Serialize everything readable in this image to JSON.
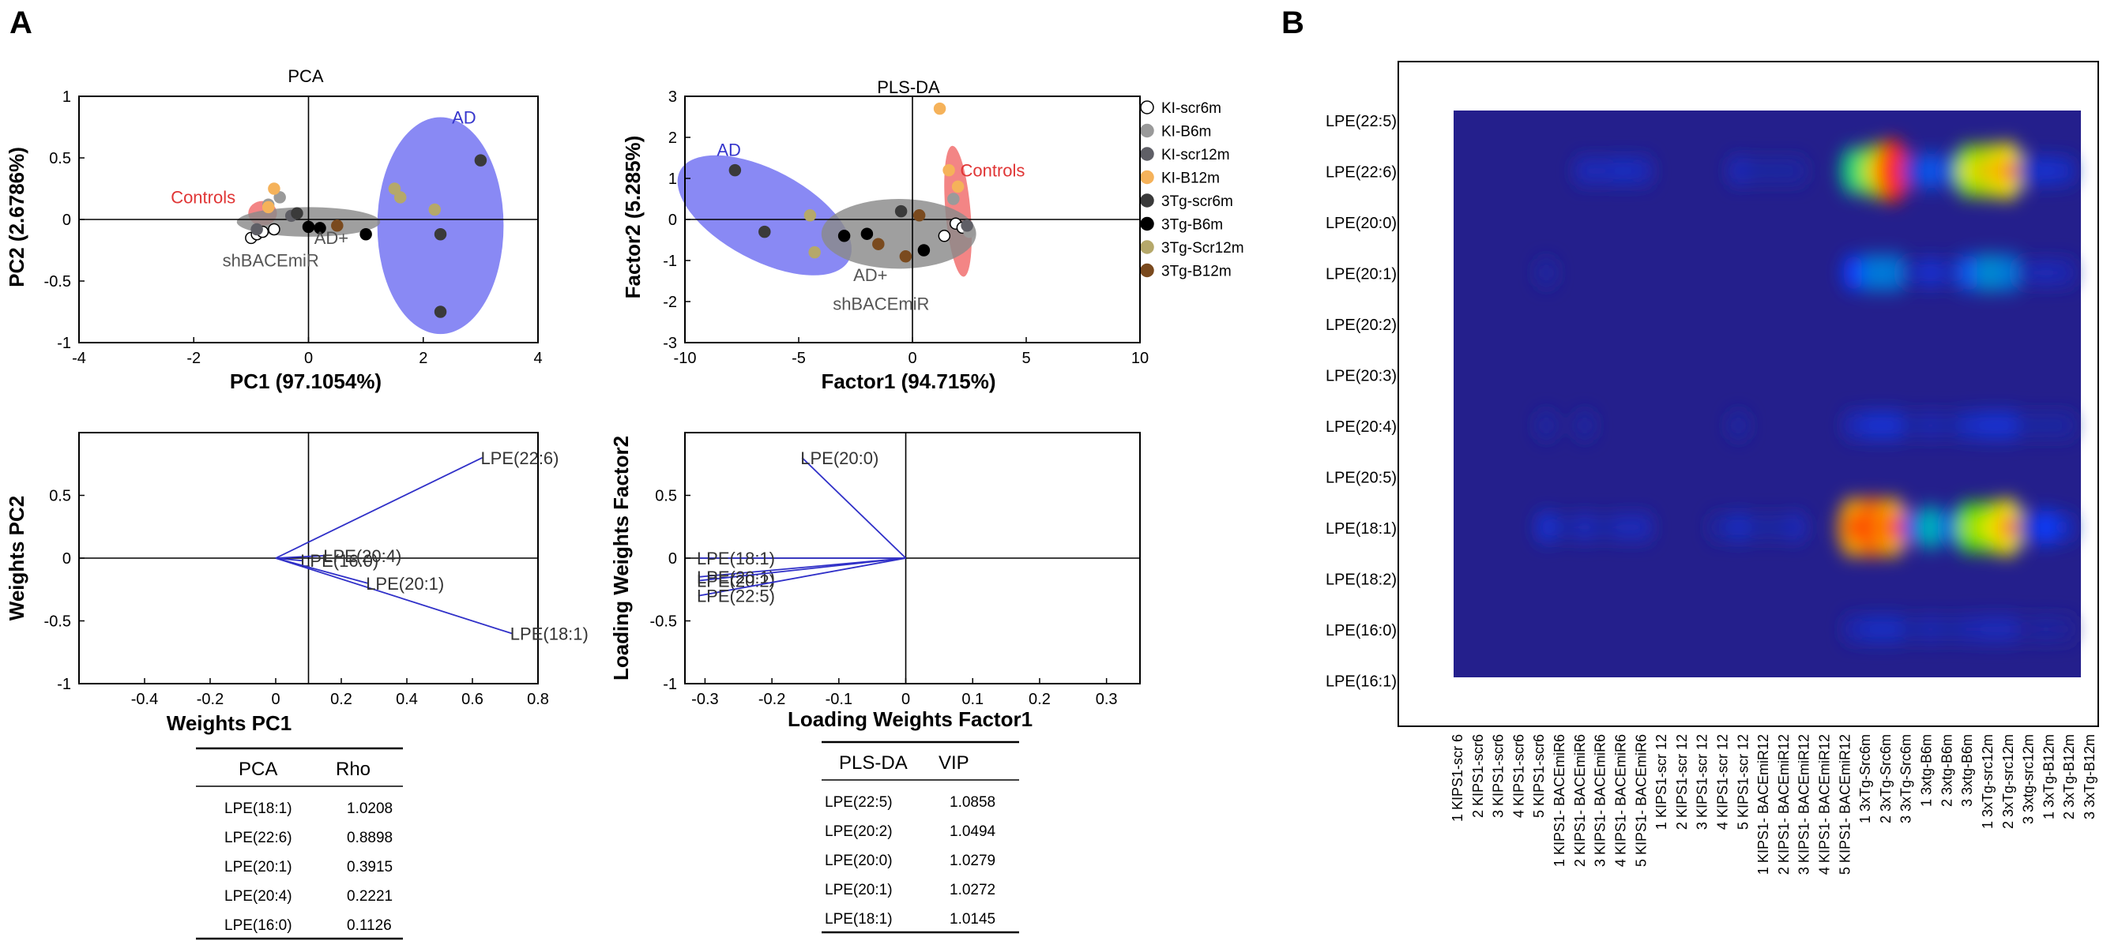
{
  "panels": {
    "a": "A",
    "b": "B"
  },
  "colors": {
    "blue_region": "#6f6ff2",
    "red_region": "#f06a6a",
    "gray_region": "#8a8a8a",
    "loading_line": "#3030c8",
    "heat_bg": "#241f8c"
  },
  "chart_data": [
    {
      "id": "pca",
      "type": "scatter",
      "title": "PCA",
      "xlabel": "PC1 (97.1054%)",
      "ylabel": "PC2 (2.6786%)",
      "xlim": [
        -4,
        4
      ],
      "ylim": [
        -1,
        1
      ],
      "xticks": [
        -4,
        -2,
        0,
        2,
        4
      ],
      "yticks": [
        -1,
        -0.5,
        0,
        0.5,
        1
      ],
      "xtick_labels": [
        "-4",
        "-2",
        "0",
        "2",
        "4"
      ],
      "ytick_labels": [
        "-1",
        "-0.5",
        "0",
        "0.5",
        "1"
      ],
      "region_labels": {
        "ad": "AD",
        "controls": "Controls",
        "treated_1": "AD+",
        "treated_2": "shBACEmiR"
      },
      "regions": [
        {
          "group": "AD",
          "cx": 2.3,
          "cy": -0.05,
          "rx": 1.1,
          "ry": 0.88,
          "rot": 0,
          "color": "#6f6ff2"
        },
        {
          "group": "Controls",
          "cx": -0.8,
          "cy": 0.05,
          "rx": 0.25,
          "ry": 0.1,
          "rot": 0,
          "color": "#f06a6a"
        },
        {
          "group": "AD+shBACEmiR",
          "cx": 0.0,
          "cy": -0.02,
          "rx": 1.25,
          "ry": 0.12,
          "rot": 0,
          "color": "#8a8a8a"
        }
      ],
      "points": [
        {
          "x": -1.0,
          "y": -0.15,
          "s": 0
        },
        {
          "x": -0.9,
          "y": -0.12,
          "s": 0
        },
        {
          "x": -0.8,
          "y": -0.1,
          "s": 0
        },
        {
          "x": -0.6,
          "y": -0.08,
          "s": 0
        },
        {
          "x": -0.7,
          "y": 0.12,
          "s": 1
        },
        {
          "x": -0.5,
          "y": 0.18,
          "s": 1
        },
        {
          "x": -0.9,
          "y": -0.08,
          "s": 2
        },
        {
          "x": -0.3,
          "y": 0.03,
          "s": 2
        },
        {
          "x": -0.6,
          "y": 0.25,
          "s": 3
        },
        {
          "x": -0.7,
          "y": 0.1,
          "s": 3
        },
        {
          "x": 3.0,
          "y": 0.48,
          "s": 4
        },
        {
          "x": 2.3,
          "y": -0.75,
          "s": 4
        },
        {
          "x": 2.3,
          "y": -0.12,
          "s": 4
        },
        {
          "x": -0.2,
          "y": 0.05,
          "s": 4
        },
        {
          "x": 0.0,
          "y": -0.06,
          "s": 5
        },
        {
          "x": 0.2,
          "y": -0.07,
          "s": 5
        },
        {
          "x": 1.0,
          "y": -0.12,
          "s": 5
        },
        {
          "x": 1.5,
          "y": 0.25,
          "s": 6
        },
        {
          "x": 2.2,
          "y": 0.08,
          "s": 6
        },
        {
          "x": 1.6,
          "y": 0.18,
          "s": 6
        },
        {
          "x": 0.5,
          "y": -0.05,
          "s": 7
        }
      ]
    },
    {
      "id": "plsda",
      "type": "scatter",
      "title": "PLS-DA",
      "xlabel": "Factor1 (94.715%)",
      "ylabel": "Factor2 (5.285%)",
      "xlim": [
        -10,
        10
      ],
      "ylim": [
        -3,
        3
      ],
      "xticks": [
        -10,
        -5,
        0,
        5,
        10
      ],
      "yticks": [
        -3,
        -2,
        -1,
        0,
        1,
        2,
        3
      ],
      "xtick_labels": [
        "-10",
        "-5",
        "0",
        "5",
        "10"
      ],
      "ytick_labels": [
        "-3",
        "-2",
        "-1",
        "0",
        "1",
        "2",
        "3"
      ],
      "region_labels": {
        "ad": "AD",
        "controls": "Controls",
        "treated_1": "AD+",
        "treated_2": "shBACEmiR"
      },
      "regions": [
        {
          "group": "AD",
          "cx": -6.5,
          "cy": 0.1,
          "rx": 4.2,
          "ry": 1.1,
          "rot": 28,
          "color": "#6f6ff2"
        },
        {
          "group": "Controls",
          "cx": 2.0,
          "cy": 0.2,
          "rx": 0.55,
          "ry": 1.6,
          "rot": -5,
          "color": "#f06a6a"
        },
        {
          "group": "AD+shBACEmiR",
          "cx": -0.6,
          "cy": -0.35,
          "rx": 3.4,
          "ry": 0.85,
          "rot": 0,
          "color": "#8a8a8a"
        }
      ],
      "points": [
        {
          "x": 1.9,
          "y": -0.1,
          "s": 0
        },
        {
          "x": 1.4,
          "y": -0.4,
          "s": 0
        },
        {
          "x": 2.2,
          "y": -0.2,
          "s": 0
        },
        {
          "x": 1.8,
          "y": 0.5,
          "s": 1
        },
        {
          "x": 2.5,
          "y": -0.3,
          "s": 1
        },
        {
          "x": 2.4,
          "y": -0.15,
          "s": 2
        },
        {
          "x": 1.2,
          "y": 2.7,
          "s": 3
        },
        {
          "x": 1.6,
          "y": 1.2,
          "s": 3
        },
        {
          "x": 2.0,
          "y": 0.8,
          "s": 3
        },
        {
          "x": -7.8,
          "y": 1.2,
          "s": 4
        },
        {
          "x": -6.5,
          "y": -0.3,
          "s": 4
        },
        {
          "x": -0.5,
          "y": 0.2,
          "s": 4
        },
        {
          "x": -3.0,
          "y": -0.4,
          "s": 5
        },
        {
          "x": 0.5,
          "y": -0.75,
          "s": 5
        },
        {
          "x": -2.0,
          "y": -0.35,
          "s": 5
        },
        {
          "x": -4.5,
          "y": 0.1,
          "s": 6
        },
        {
          "x": -4.3,
          "y": -0.8,
          "s": 6
        },
        {
          "x": -0.3,
          "y": -0.9,
          "s": 7
        },
        {
          "x": 0.3,
          "y": 0.1,
          "s": 7
        },
        {
          "x": -1.5,
          "y": -0.6,
          "s": 7
        }
      ],
      "legend": [
        {
          "label": "KI-scr6m",
          "color": "#ffffff",
          "stroke": "#000000"
        },
        {
          "label": "KI-B6m",
          "color": "#9a9a9a",
          "stroke": "#9a9a9a"
        },
        {
          "label": "KI-scr12m",
          "color": "#5f5f66",
          "stroke": "#5f5f66"
        },
        {
          "label": "KI-B12m",
          "color": "#f5b25a",
          "stroke": "#f5b25a"
        },
        {
          "label": "3Tg-scr6m",
          "color": "#3a3a3a",
          "stroke": "#3a3a3a"
        },
        {
          "label": "3Tg-B6m",
          "color": "#000000",
          "stroke": "#000000"
        },
        {
          "label": "3Tg-Scr12m",
          "color": "#b5a86a",
          "stroke": "#b5a86a"
        },
        {
          "label": "3Tg-B12m",
          "color": "#7a4a1e",
          "stroke": "#7a4a1e"
        }
      ]
    },
    {
      "id": "pca_weights",
      "type": "line",
      "xlabel": "Weights PC1",
      "ylabel": "Weights PC2",
      "xlim": [
        -0.6,
        0.8
      ],
      "ylim": [
        -1,
        1
      ],
      "xticks": [
        -0.4,
        -0.2,
        0,
        0.2,
        0.4,
        0.6,
        0.8
      ],
      "yticks": [
        -1,
        -0.5,
        0,
        0.5
      ],
      "xtick_labels": [
        "-0.4",
        "-0.2",
        "0",
        "0.2",
        "0.4",
        "0.6",
        "0.8"
      ],
      "ytick_labels": [
        "-1",
        "-0.5",
        "0",
        "0.5"
      ],
      "origin_x": 0,
      "vline_x": 0.1,
      "vectors": [
        {
          "label": "LPE(22:6)",
          "x": 0.63,
          "y": 0.8
        },
        {
          "label": "LPE(18:1)",
          "x": 0.72,
          "y": -0.6
        },
        {
          "label": "LPE(20:4)",
          "x": 0.15,
          "y": 0.02
        },
        {
          "label": "LPE(16:0)",
          "x": 0.08,
          "y": -0.02
        },
        {
          "label": "LPE(20:1)",
          "x": 0.28,
          "y": -0.2
        }
      ]
    },
    {
      "id": "plsda_weights",
      "type": "line",
      "xlabel": "Loading Weights Factor1",
      "ylabel": "Loading Weights Factor2",
      "xlim": [
        -0.33,
        0.35
      ],
      "ylim": [
        -1,
        1
      ],
      "xticks": [
        -0.3,
        -0.2,
        -0.1,
        0,
        0.1,
        0.2,
        0.3
      ],
      "yticks": [
        -1,
        -0.5,
        0,
        0.5
      ],
      "xtick_labels": [
        "-0.3",
        "-0.2",
        "-0.1",
        "0",
        "0.1",
        "0.2",
        "0.3"
      ],
      "ytick_labels": [
        "-1",
        "-0.5",
        "0",
        "0.5"
      ],
      "vectors": [
        {
          "label": "LPE(20:0)",
          "x": -0.155,
          "y": 0.8
        },
        {
          "label": "LPE(18:1)",
          "x": -0.31,
          "y": 0.0
        },
        {
          "label": "LPE(20:1)",
          "x": -0.31,
          "y": -0.15
        },
        {
          "label": "LPE(20:2)",
          "x": -0.31,
          "y": -0.18
        },
        {
          "label": "LPE(22:5)",
          "x": -0.31,
          "y": -0.3
        }
      ]
    },
    {
      "id": "heatmap",
      "type": "heatmap",
      "rows": [
        "LPE(22:5)",
        "LPE(22:6)",
        "LPE(20:0)",
        "LPE(20:1)",
        "LPE(20:2)",
        "LPE(20:3)",
        "LPE(20:4)",
        "LPE(20:5)",
        "LPE(18:1)",
        "LPE(18:2)",
        "LPE(16:0)",
        "LPE(16:1)"
      ],
      "columns": [
        "1 KIPS1-scr 6",
        "2 KIPS1-scr6",
        "3 KIPS1-scr6",
        "4 KIPS1-scr6",
        "5 KIPS1-scr6",
        "1 KIPS1- BACEmiR6",
        "2 KIPS1- BACEmiR6",
        "3 KIPS1- BACEmiR6",
        "4 KIPS1- BACEmiR6",
        "5 KIPS1- BACEmiR6",
        "1 KIPS1-scr 12",
        "2 KIPS1-scr 12",
        "3 KIPS1-scr 12",
        "4 KIPS1-scr 12",
        "5 KIPS1-scr 12",
        "1 KIPS1- BACEmiR12",
        "2 KIPS1- BACEmiR12",
        "3 KIPS1- BACEmiR12",
        "4 KIPS1- BACEmiR12",
        "5 KIPS1- BACEmiR12",
        "1 3xTg-Src6m",
        "2 3xTg-Src6m",
        "3 3xTg-Src6m",
        "1 3xtg-B6m",
        "2 3xtg-B6m",
        "3 3xtg-B6m",
        "1 3xTg-src12m",
        "2 3xTg-src12m",
        "3 3xtg-src12m",
        "1 3xTg-B12m",
        "2 3xTg-B12m",
        "3 3xTg-B12m"
      ],
      "values": [
        [
          0,
          0,
          0,
          0,
          0,
          0,
          0,
          0,
          0,
          0,
          0,
          0,
          0,
          0,
          0,
          0,
          0,
          0,
          0,
          0,
          0,
          0,
          0,
          0,
          0,
          0,
          0,
          0,
          0,
          0,
          0,
          0
        ],
        [
          0,
          0,
          0,
          0,
          0,
          0,
          0.1,
          0.1,
          0.12,
          0.1,
          0,
          0,
          0,
          0,
          0.1,
          0.05,
          0.05,
          0.05,
          0,
          0,
          0.55,
          0.75,
          1.0,
          0.15,
          0.3,
          0.15,
          0.75,
          0.8,
          0.85,
          0.12,
          0.15,
          0.12
        ],
        [
          0,
          0,
          0,
          0,
          0,
          0,
          0,
          0,
          0,
          0,
          0,
          0,
          0,
          0,
          0,
          0,
          0,
          0,
          0,
          0,
          0,
          0,
          0,
          0,
          0,
          0,
          0,
          0,
          0,
          0,
          0,
          0
        ],
        [
          0,
          0,
          0,
          0,
          0.05,
          0,
          0,
          0,
          0,
          0,
          0,
          0,
          0,
          0,
          0,
          0,
          0,
          0,
          0,
          0,
          0.25,
          0.35,
          0.35,
          0.08,
          0.15,
          0.08,
          0.3,
          0.38,
          0.35,
          0.08,
          0.1,
          0.08
        ],
        [
          0,
          0,
          0,
          0,
          0,
          0,
          0,
          0,
          0,
          0,
          0,
          0,
          0,
          0,
          0,
          0,
          0,
          0,
          0,
          0,
          0,
          0,
          0,
          0,
          0,
          0,
          0,
          0,
          0,
          0,
          0,
          0
        ],
        [
          0,
          0,
          0,
          0,
          0,
          0,
          0,
          0,
          0,
          0,
          0,
          0,
          0,
          0,
          0,
          0,
          0,
          0,
          0,
          0,
          0,
          0,
          0,
          0,
          0,
          0,
          0,
          0,
          0,
          0,
          0,
          0
        ],
        [
          0,
          0,
          0,
          0,
          0.05,
          0,
          0.05,
          0,
          0,
          0,
          0,
          0,
          0,
          0,
          0.05,
          0,
          0,
          0,
          0,
          0,
          0.1,
          0.15,
          0.15,
          0.05,
          0.08,
          0.05,
          0.12,
          0.15,
          0.15,
          0.05,
          0.05,
          0.05
        ],
        [
          0,
          0,
          0,
          0,
          0,
          0,
          0,
          0,
          0,
          0,
          0,
          0,
          0,
          0,
          0,
          0,
          0,
          0,
          0,
          0,
          0,
          0,
          0,
          0,
          0,
          0,
          0,
          0,
          0,
          0,
          0,
          0
        ],
        [
          0,
          0,
          0,
          0,
          0.15,
          0.05,
          0.1,
          0.05,
          0.1,
          0.1,
          0,
          0,
          0,
          0.05,
          0.12,
          0.05,
          0.05,
          0.1,
          0,
          0,
          0.9,
          0.95,
          0.9,
          0.2,
          0.45,
          0.2,
          0.7,
          0.75,
          0.85,
          0.12,
          0.25,
          0.12
        ],
        [
          0,
          0,
          0,
          0,
          0,
          0,
          0,
          0,
          0,
          0,
          0,
          0,
          0,
          0,
          0,
          0,
          0,
          0,
          0,
          0,
          0,
          0,
          0,
          0,
          0,
          0,
          0,
          0,
          0,
          0,
          0,
          0
        ],
        [
          0,
          0,
          0,
          0,
          0,
          0,
          0,
          0,
          0,
          0,
          0,
          0,
          0,
          0,
          0,
          0,
          0,
          0,
          0,
          0,
          0.08,
          0.12,
          0.12,
          0.05,
          0.08,
          0.05,
          0.08,
          0.1,
          0.1,
          0.03,
          0.05,
          0.03
        ],
        [
          0,
          0,
          0,
          0,
          0,
          0,
          0,
          0,
          0,
          0,
          0,
          0,
          0,
          0,
          0,
          0,
          0,
          0,
          0,
          0,
          0,
          0,
          0,
          0,
          0,
          0,
          0,
          0,
          0,
          0,
          0,
          0
        ]
      ]
    }
  ],
  "tables": {
    "pca": {
      "headers": [
        "PCA",
        "Rho"
      ],
      "rows": [
        [
          "LPE(18:1)",
          "1.0208"
        ],
        [
          "LPE(22:6)",
          "0.8898"
        ],
        [
          "LPE(20:1)",
          "0.3915"
        ],
        [
          "LPE(20:4)",
          "0.2221"
        ],
        [
          "LPE(16:0)",
          "0.1126"
        ]
      ]
    },
    "plsda": {
      "headers": [
        "PLS-DA",
        "VIP"
      ],
      "rows": [
        [
          "LPE(22:5)",
          "1.0858"
        ],
        [
          "LPE(20:2)",
          "1.0494"
        ],
        [
          "LPE(20:0)",
          "1.0279"
        ],
        [
          "LPE(20:1)",
          "1.0272"
        ],
        [
          "LPE(18:1)",
          "1.0145"
        ]
      ]
    }
  }
}
